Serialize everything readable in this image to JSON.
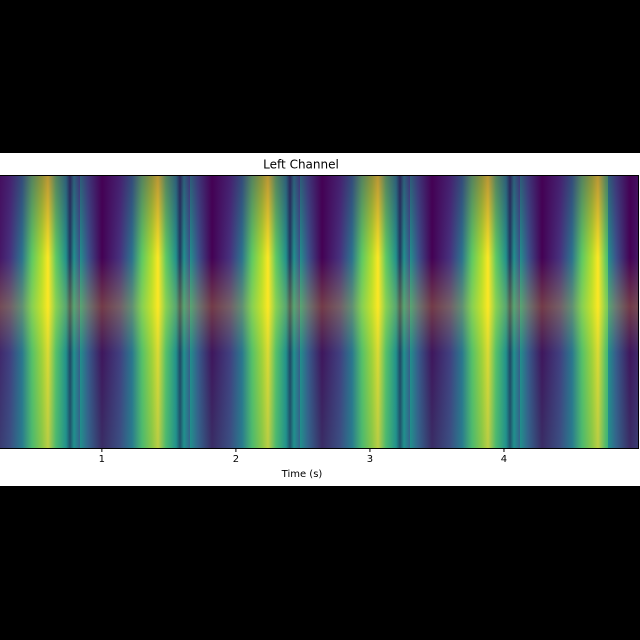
{
  "chart_data": {
    "type": "spectrogram",
    "title": "Left Channel",
    "x_label": "Time (s)",
    "xlim": [
      0.24,
      5.0
    ],
    "xticks": [
      1,
      2,
      3,
      4
    ]
  }
}
